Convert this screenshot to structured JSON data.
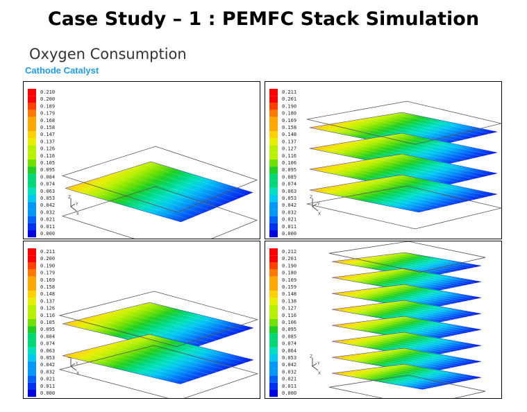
{
  "title": "Case Study – 1 : PEMFC Stack Simulation",
  "subtitle": "Oxygen Consumption",
  "section": "Cathode Catalyst",
  "colors": {
    "section_label": "#1e9be6",
    "scale": [
      "#ff0000",
      "#ff4000",
      "#ff7a00",
      "#ffa800",
      "#ffd000",
      "#e8ee00",
      "#b8f000",
      "#70e000",
      "#20d020",
      "#00d878",
      "#00e0c0",
      "#00c8f0",
      "#0098f8",
      "#0060f8",
      "#0030f0",
      "#0000e0"
    ]
  },
  "axis_icon": {
    "z": "Z",
    "x": "X",
    "y": "Y"
  },
  "panels": [
    {
      "layers": 1,
      "legend": [
        "0.210",
        "0.200",
        "0.189",
        "0.179",
        "0.168",
        "0.158",
        "0.147",
        "0.137",
        "0.126",
        "0.116",
        "0.105",
        "0.095",
        "0.084",
        "0.074",
        "0.063",
        "0.053",
        "0.042",
        "0.032",
        "0.021",
        "0.011",
        "0.000"
      ]
    },
    {
      "layers": 4,
      "legend": [
        "0.211",
        "0.201",
        "0.190",
        "0.180",
        "0.169",
        "0.158",
        "0.148",
        "0.137",
        "0.127",
        "0.116",
        "0.106",
        "0.095",
        "0.085",
        "0.074",
        "0.063",
        "0.053",
        "0.042",
        "0.032",
        "0.021",
        "0.011",
        "0.000"
      ]
    },
    {
      "layers": 2,
      "legend": [
        "0.211",
        "0.200",
        "0.190",
        "0.179",
        "0.169",
        "0.158",
        "0.148",
        "0.137",
        "0.126",
        "0.116",
        "0.105",
        "0.095",
        "0.084",
        "0.074",
        "0.063",
        "0.053",
        "0.042",
        "0.032",
        "0.021",
        "0.011",
        "0.000"
      ]
    },
    {
      "layers": 8,
      "legend": [
        "0.212",
        "0.201",
        "0.190",
        "0.180",
        "0.169",
        "0.159",
        "0.148",
        "0.138",
        "0.127",
        "0.116",
        "0.106",
        "0.095",
        "0.085",
        "0.074",
        "0.064",
        "0.053",
        "0.042",
        "0.032",
        "0.021",
        "0.011",
        "0.000"
      ]
    }
  ]
}
